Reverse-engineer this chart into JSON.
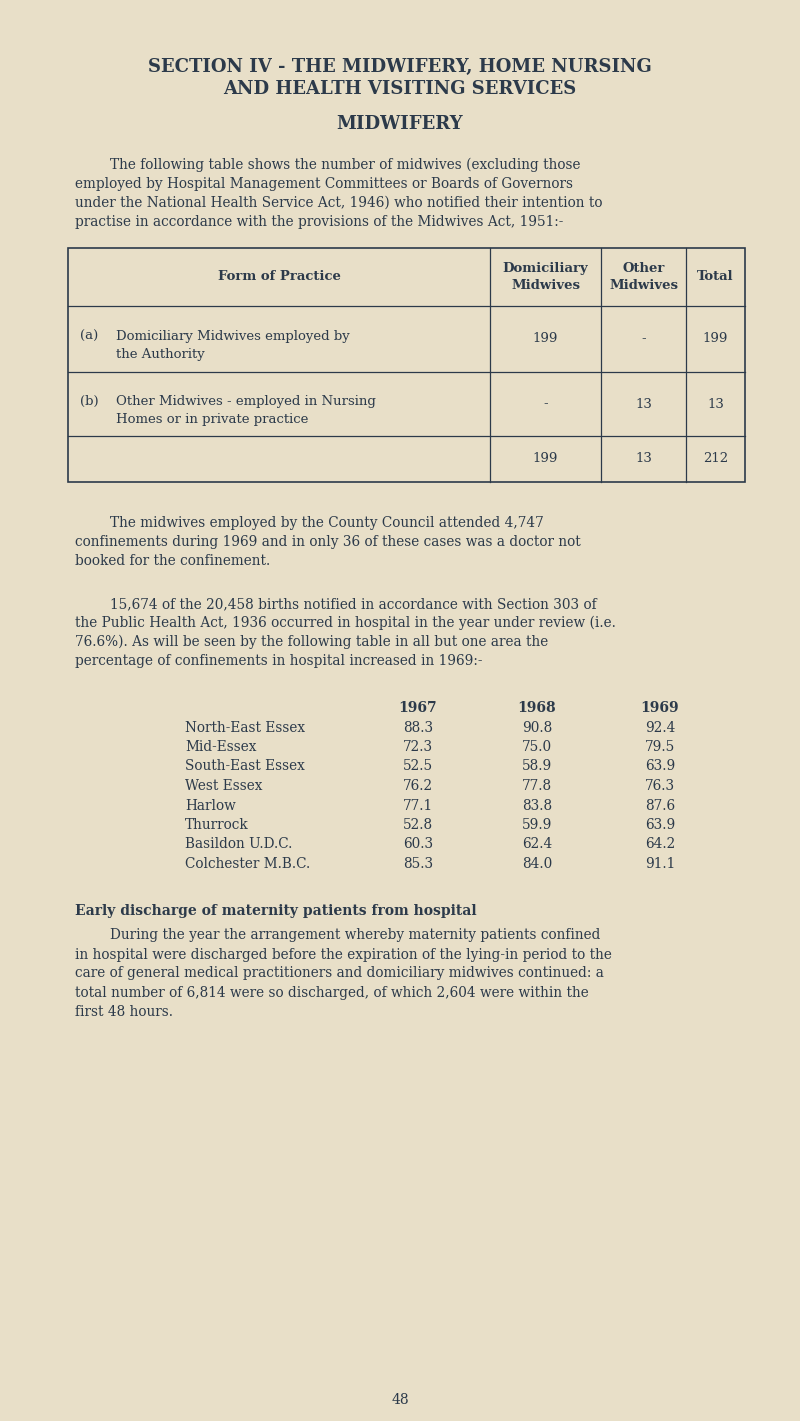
{
  "background_color": "#e8dfc8",
  "text_color": "#2c3a4a",
  "page_width": 8.0,
  "page_height": 14.21,
  "title_line1": "SECTION IV - THE MIDWIFERY, HOME NURSING",
  "title_line2": "AND HEALTH VISITING SERVICES",
  "subtitle": "MIDWIFERY",
  "intro_text_lines": [
    "The following table shows the number of midwives (excluding those",
    "employed by Hospital Management Committees or Boards of Governors",
    "under the National Health Service Act, 1946) who notified their intention to",
    "practise in accordance with the provisions of the Midwives Act, 1951:-"
  ],
  "table1_col_header1": "Form of Practice",
  "table1_col_header2": "Domiciliary\nMidwives",
  "table1_col_header3": "Other\nMidwives",
  "table1_col_header4": "Total",
  "table1_row1_label1": "(a)",
  "table1_row1_label2": "Domiciliary Midwives employed by",
  "table1_row1_label3": "the Authority",
  "table1_row1_v1": "199",
  "table1_row1_v2": "-",
  "table1_row1_v3": "199",
  "table1_row2_label1": "(b)",
  "table1_row2_label2": "Other Midwives - employed in Nursing",
  "table1_row2_label3": "Homes or in private practice",
  "table1_row2_v1": "-",
  "table1_row2_v2": "13",
  "table1_row2_v3": "13",
  "table1_total_v1": "199",
  "table1_total_v2": "13",
  "table1_total_v3": "212",
  "para2_lines": [
    "The midwives employed by the County Council attended 4,747",
    "confinements during 1969 and in only 36 of these cases was a doctor not",
    "booked for the confinement."
  ],
  "para3_lines": [
    "15,674 of the 20,458 births notified in accordance with Section 303 of",
    "the Public Health Act, 1936 occurred in hospital in the year under review (i.e.",
    "76.6%). As will be seen by the following table in all but one area the",
    "percentage of confinements in hospital increased in 1969:-"
  ],
  "table2_areas": [
    "North-East Essex",
    "Mid-Essex",
    "South-East Essex",
    "West Essex",
    "Harlow",
    "Thurrock",
    "Basildon U.D.C.",
    "Colchester M.B.C."
  ],
  "table2_1967": [
    "88.3",
    "72.3",
    "52.5",
    "76.2",
    "77.1",
    "52.8",
    "60.3",
    "85.3"
  ],
  "table2_1968": [
    "90.8",
    "75.0",
    "58.9",
    "77.8",
    "83.8",
    "59.9",
    "62.4",
    "84.0"
  ],
  "table2_1969": [
    "92.4",
    "79.5",
    "63.9",
    "76.3",
    "87.6",
    "63.9",
    "64.2",
    "91.1"
  ],
  "early_discharge_title": "Early discharge of maternity patients from hospital",
  "early_discharge_lines": [
    "During the year the arrangement whereby maternity patients confined",
    "in hospital were discharged before the expiration of the lying-in period to the",
    "care of general medical practitioners and domiciliary midwives continued: a",
    "total number of 6,814 were so discharged, of which 2,604 were within the",
    "first 48 hours."
  ],
  "page_number": "48"
}
